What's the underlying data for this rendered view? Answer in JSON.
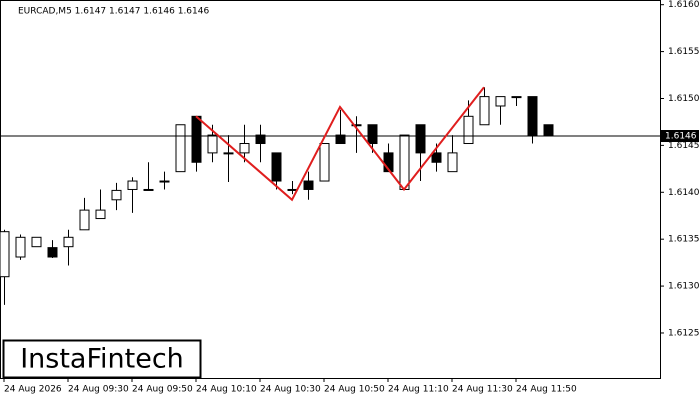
{
  "chart_data": {
    "type": "candlestick",
    "title": "EURCAD,M5  1.6147 1.6147 1.6146 1.6146",
    "logo": "InstaFintech",
    "categories": [
      "24 Aug 2026",
      null,
      null,
      null,
      "24 Aug 09:30",
      null,
      null,
      null,
      "24 Aug 09:50",
      null,
      null,
      null,
      "24 Aug 10:10",
      null,
      null,
      null,
      "24 Aug 10:30",
      null,
      null,
      null,
      "24 Aug 10:50",
      null,
      null,
      null,
      "24 Aug 11:10",
      null,
      null,
      null,
      "24 Aug 11:30",
      null,
      null,
      null,
      "24 Aug 11:50",
      null,
      null
    ],
    "open": [
      1.6131,
      1.61331,
      1.61342,
      1.61341,
      1.61342,
      1.6136,
      1.61372,
      1.61392,
      1.61403,
      1.61403,
      1.61412,
      1.61422,
      1.61481,
      1.61442,
      1.61442,
      1.61442,
      1.61461,
      1.61442,
      1.61403,
      1.61412,
      1.61412,
      1.61461,
      1.61472,
      1.61472,
      1.61442,
      1.61403,
      1.61472,
      1.61442,
      1.61422,
      1.61452,
      1.61472,
      1.61492,
      1.61502,
      1.61502,
      1.61472
    ],
    "high": [
      1.6136,
      1.61355,
      1.61352,
      1.61349,
      1.6136,
      1.61394,
      1.61403,
      1.6141,
      1.61416,
      1.61432,
      1.61422,
      1.61472,
      1.61481,
      1.61472,
      1.61461,
      1.61472,
      1.61472,
      1.61442,
      1.61412,
      1.61422,
      1.61452,
      1.61488,
      1.61481,
      1.61472,
      1.61452,
      1.61461,
      1.61472,
      1.61452,
      1.61461,
      1.61498,
      1.61512,
      1.61502,
      1.61502,
      1.61502,
      1.61472
    ],
    "low": [
      1.6128,
      1.61328,
      1.61342,
      1.6133,
      1.61322,
      1.6136,
      1.61372,
      1.61381,
      1.61378,
      1.61403,
      1.61403,
      1.61422,
      1.61422,
      1.61432,
      1.61411,
      1.61432,
      1.61432,
      1.61403,
      1.61398,
      1.61392,
      1.61412,
      1.61452,
      1.61442,
      1.61442,
      1.61422,
      1.61403,
      1.61412,
      1.61422,
      1.61422,
      1.61452,
      1.61472,
      1.61472,
      1.61492,
      1.61452,
      1.61461
    ],
    "close": [
      1.61358,
      1.61352,
      1.61352,
      1.61331,
      1.61352,
      1.61381,
      1.61381,
      1.61402,
      1.61412,
      1.61403,
      1.61412,
      1.61472,
      1.61432,
      1.61461,
      1.61442,
      1.61452,
      1.61452,
      1.61412,
      1.61403,
      1.61403,
      1.61452,
      1.61452,
      1.61472,
      1.61452,
      1.61422,
      1.61461,
      1.61442,
      1.61432,
      1.61442,
      1.61481,
      1.61502,
      1.61502,
      1.61502,
      1.61461,
      1.61461
    ],
    "pattern": {
      "color": "#e01e1e",
      "x": [
        12,
        18,
        21,
        25,
        30
      ],
      "values": [
        1.61481,
        1.61392,
        1.61491,
        1.61403,
        1.61512
      ]
    },
    "last_price": 1.6146,
    "ylim": [
      1.61202,
      1.61605
    ],
    "yticks": [
      {
        "value": 1.6125,
        "label": "1.6125"
      },
      {
        "value": 1.613,
        "label": "1.6130"
      },
      1.6135,
      {
        "value": 1.614,
        "label": "1.6140"
      },
      1.6145,
      {
        "value": 1.615,
        "label": "1.6150"
      },
      1.6155,
      {
        "value": 1.616,
        "label": "1.6160"
      }
    ]
  }
}
